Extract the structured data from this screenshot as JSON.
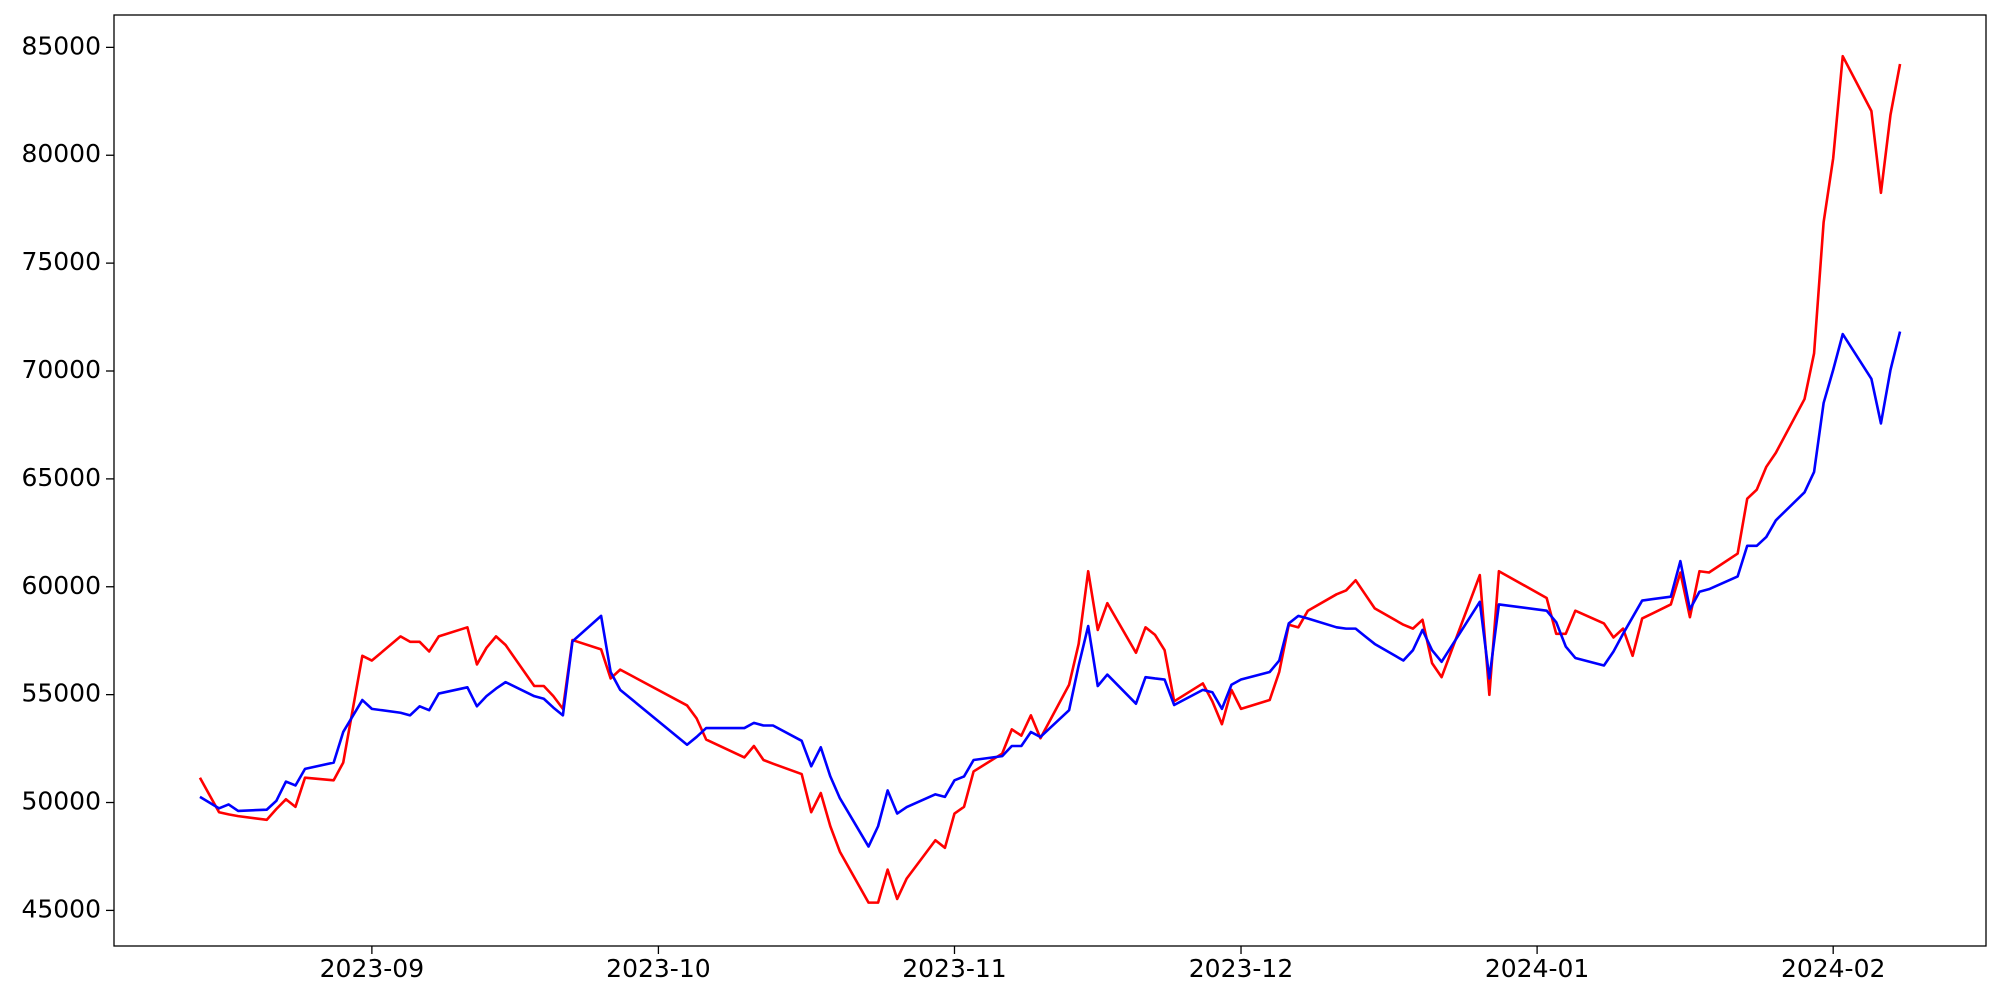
{
  "chart_data": {
    "type": "line",
    "x": [
      "2023-08-14",
      "2023-08-16",
      "2023-08-17",
      "2023-08-18",
      "2023-08-21",
      "2023-08-22",
      "2023-08-23",
      "2023-08-24",
      "2023-08-25",
      "2023-08-28",
      "2023-08-29",
      "2023-08-31",
      "2023-09-01",
      "2023-09-04",
      "2023-09-05",
      "2023-09-06",
      "2023-09-07",
      "2023-09-08",
      "2023-09-11",
      "2023-09-12",
      "2023-09-13",
      "2023-09-14",
      "2023-09-15",
      "2023-09-18",
      "2023-09-19",
      "2023-09-20",
      "2023-09-21",
      "2023-09-22",
      "2023-09-25",
      "2023-09-26",
      "2023-09-27",
      "2023-10-04",
      "2023-10-05",
      "2023-10-06",
      "2023-10-10",
      "2023-10-11",
      "2023-10-12",
      "2023-10-13",
      "2023-10-16",
      "2023-10-17",
      "2023-10-18",
      "2023-10-19",
      "2023-10-20",
      "2023-10-23",
      "2023-10-24",
      "2023-10-25",
      "2023-10-26",
      "2023-10-27",
      "2023-10-30",
      "2023-10-31",
      "2023-11-01",
      "2023-11-02",
      "2023-11-03",
      "2023-11-06",
      "2023-11-07",
      "2023-11-08",
      "2023-11-09",
      "2023-11-10",
      "2023-11-13",
      "2023-11-14",
      "2023-11-15",
      "2023-11-16",
      "2023-11-17",
      "2023-11-20",
      "2023-11-21",
      "2023-11-22",
      "2023-11-23",
      "2023-11-24",
      "2023-11-27",
      "2023-11-28",
      "2023-11-29",
      "2023-11-30",
      "2023-12-01",
      "2023-12-04",
      "2023-12-05",
      "2023-12-06",
      "2023-12-07",
      "2023-12-08",
      "2023-12-11",
      "2023-12-12",
      "2023-12-13",
      "2023-12-14",
      "2023-12-15",
      "2023-12-18",
      "2023-12-19",
      "2023-12-20",
      "2023-12-21",
      "2023-12-22",
      "2023-12-26",
      "2023-12-27",
      "2023-12-28",
      "2024-01-02",
      "2024-01-03",
      "2024-01-04",
      "2024-01-05",
      "2024-01-08",
      "2024-01-09",
      "2024-01-10",
      "2024-01-11",
      "2024-01-12",
      "2024-01-15",
      "2024-01-16",
      "2024-01-17",
      "2024-01-18",
      "2024-01-19",
      "2024-01-22",
      "2024-01-23",
      "2024-01-24",
      "2024-01-25",
      "2024-01-26",
      "2024-01-29",
      "2024-01-30",
      "2024-01-31",
      "2024-02-01",
      "2024-02-02",
      "2024-02-05",
      "2024-02-06",
      "2024-02-07",
      "2024-02-08"
    ],
    "series": [
      {
        "color": "#ff0000",
        "values": [
          51150,
          49550,
          49450,
          49370,
          49200,
          49700,
          50150,
          49800,
          51150,
          51030,
          51850,
          56800,
          56580,
          57700,
          57450,
          57450,
          57000,
          57700,
          58120,
          56400,
          57170,
          57700,
          57300,
          55400,
          55400,
          54930,
          54340,
          57530,
          57100,
          55750,
          56160,
          54500,
          53900,
          52920,
          52090,
          52620,
          51970,
          51800,
          51320,
          49550,
          50440,
          48900,
          47720,
          45360,
          45360,
          46890,
          45530,
          46480,
          48250,
          47900,
          49490,
          49800,
          51440,
          52270,
          53390,
          53100,
          54040,
          52980,
          55460,
          57350,
          60720,
          58000,
          59240,
          56940,
          58120,
          57770,
          57060,
          54690,
          55520,
          54690,
          53630,
          55220,
          54340,
          54750,
          56050,
          58240,
          58120,
          58890,
          59650,
          59830,
          60300,
          59650,
          59000,
          58240,
          58060,
          58470,
          56460,
          55810,
          60540,
          54990,
          60720,
          59480,
          57820,
          57820,
          58890,
          58300,
          57650,
          58060,
          56800,
          58530,
          59180,
          60660,
          58590,
          60720,
          60660,
          61540,
          64080,
          64500,
          65560,
          66210,
          68700,
          70820,
          76900,
          79860,
          84590,
          82050,
          78260,
          81870,
          84230
        ]
      },
      {
        "color": "#0000ff",
        "values": [
          50260,
          49730,
          49910,
          49610,
          49670,
          50080,
          50970,
          50790,
          51560,
          51850,
          53270,
          54750,
          54340,
          54160,
          54040,
          54460,
          54280,
          55050,
          55340,
          54460,
          54930,
          55280,
          55580,
          54930,
          54810,
          54400,
          54040,
          57470,
          58650,
          56050,
          55220,
          52680,
          53040,
          53450,
          53450,
          53690,
          53570,
          53570,
          52860,
          51680,
          52560,
          51210,
          50200,
          47960,
          48900,
          50560,
          49490,
          49790,
          50380,
          50260,
          51030,
          51210,
          51970,
          52150,
          52620,
          52620,
          53270,
          53040,
          54280,
          56350,
          58180,
          55400,
          55930,
          54580,
          55810,
          55750,
          55700,
          54520,
          55220,
          55110,
          54340,
          55460,
          55700,
          56050,
          56580,
          58300,
          58650,
          58530,
          58120,
          58060,
          58060,
          57700,
          57350,
          56580,
          57060,
          58000,
          57060,
          56520,
          59300,
          55750,
          59180,
          58890,
          58360,
          57230,
          56700,
          56350,
          57000,
          57820,
          58590,
          59360,
          59540,
          61190,
          58950,
          59770,
          59890,
          60480,
          61900,
          61900,
          62310,
          63080,
          64380,
          65320,
          68520,
          70050,
          71710,
          69640,
          67570,
          70050,
          71830
        ]
      }
    ],
    "xlim": [
      "2023-08-05",
      "2024-02-17"
    ],
    "xticks": [
      {
        "value": "2023-09-01",
        "label": "2023-09"
      },
      {
        "value": "2023-10-01",
        "label": "2023-10"
      },
      {
        "value": "2023-11-01",
        "label": "2023-11"
      },
      {
        "value": "2023-12-01",
        "label": "2023-12"
      },
      {
        "value": "2024-01-01",
        "label": "2024-01"
      },
      {
        "value": "2024-02-01",
        "label": "2024-02"
      }
    ],
    "ylim": [
      43350,
      86500
    ],
    "yticks": [
      45000,
      50000,
      55000,
      60000,
      65000,
      70000,
      75000,
      80000,
      85000
    ]
  }
}
